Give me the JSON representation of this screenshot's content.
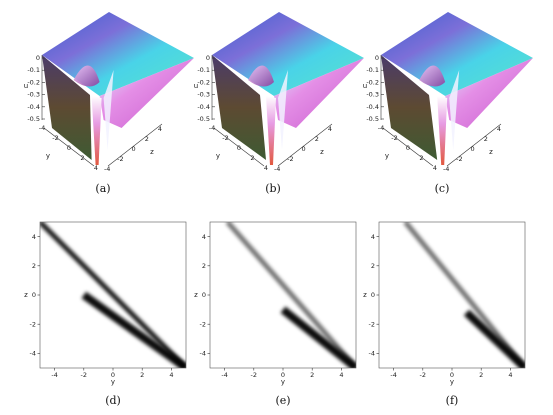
{
  "chart_data": [
    {
      "type": "surface",
      "caption": "(a)",
      "zlabel": "u",
      "xlabel": "y",
      "ylabel": "z",
      "zticks": [
        "0",
        "-0.1",
        "-0.2",
        "-0.3",
        "-0.4",
        "-0.5"
      ],
      "yticks": [
        "-4",
        "-2",
        "0",
        "2",
        "4"
      ],
      "xticks": [
        "4",
        "2",
        "0",
        "-2",
        "-4"
      ],
      "zlim": [
        -0.5,
        0
      ],
      "soliton_line_offset": -2,
      "colormap": [
        "#3fb6e6",
        "#8a66d6",
        "#e27ad8",
        "#7a2f2f",
        "#4a5a30"
      ]
    },
    {
      "type": "surface",
      "caption": "(b)",
      "zlabel": "u",
      "xlabel": "y",
      "ylabel": "z",
      "zticks": [
        "0",
        "-0.1",
        "-0.2",
        "-0.3",
        "-0.4",
        "-0.5"
      ],
      "yticks": [
        "-4",
        "-2",
        "0",
        "2",
        "4"
      ],
      "xticks": [
        "4",
        "2",
        "0",
        "-2",
        "-4"
      ],
      "zlim": [
        -0.5,
        0
      ],
      "soliton_line_offset": 0,
      "colormap": [
        "#3fb6e6",
        "#8a66d6",
        "#e27ad8",
        "#7a2f2f",
        "#4a5a30"
      ]
    },
    {
      "type": "surface",
      "caption": "(c)",
      "zlabel": "u",
      "xlabel": "y",
      "ylabel": "z",
      "zticks": [
        "0",
        "-0.1",
        "-0.2",
        "-0.3",
        "-0.4",
        "-0.5"
      ],
      "yticks": [
        "-4",
        "-2",
        "0",
        "2",
        "4"
      ],
      "xticks": [
        "4",
        "2",
        "0",
        "-2",
        "-4"
      ],
      "zlim": [
        -0.5,
        0
      ],
      "soliton_line_offset": 1,
      "colormap": [
        "#3fb6e6",
        "#8a66d6",
        "#e27ad8",
        "#7a2f2f",
        "#4a5a30"
      ]
    },
    {
      "type": "heatmap",
      "caption": "(d)",
      "xlabel": "y",
      "ylabel": "z",
      "xlim": [
        -5,
        5
      ],
      "ylim": [
        -5,
        5
      ],
      "xticks": [
        "-4",
        "-2",
        "0",
        "2",
        "4"
      ],
      "yticks": [
        "4",
        "2",
        "0",
        "-2",
        "-4"
      ],
      "line_soliton": {
        "y": -2,
        "z_from": -5,
        "z_to": 0
      },
      "diagonal_branch": {
        "from": [
          -5,
          5
        ],
        "to": [
          5,
          -5
        ]
      },
      "intersection_branch": {
        "from": [
          -2,
          0
        ],
        "to": [
          5,
          -5
        ]
      },
      "colormap": [
        "#ffffff",
        "#000000"
      ]
    },
    {
      "type": "heatmap",
      "caption": "(e)",
      "xlabel": "y",
      "ylabel": "z",
      "xlim": [
        -5,
        5
      ],
      "ylim": [
        -5,
        5
      ],
      "xticks": [
        "-4",
        "-2",
        "0",
        "2",
        "4"
      ],
      "yticks": [
        "4",
        "2",
        "0",
        "-2",
        "-4"
      ],
      "line_soliton": {
        "y": 0,
        "z_from": -5,
        "z_to": -1
      },
      "diagonal_branch": {
        "from": [
          -3.8,
          5
        ],
        "to": [
          5,
          -5
        ]
      },
      "intersection_branch": {
        "from": [
          0,
          -1
        ],
        "to": [
          5,
          -5
        ]
      },
      "colormap": [
        "#ffffff",
        "#000000"
      ]
    },
    {
      "type": "heatmap",
      "caption": "(f)",
      "xlabel": "y",
      "ylabel": "z",
      "xlim": [
        -5,
        5
      ],
      "ylim": [
        -5,
        5
      ],
      "xticks": [
        "-4",
        "-2",
        "0",
        "2",
        "4"
      ],
      "yticks": [
        "4",
        "2",
        "0",
        "-2",
        "-4"
      ],
      "line_soliton": {
        "y": 1,
        "z_from": -5,
        "z_to": -1.2
      },
      "diagonal_branch": {
        "from": [
          -3.2,
          5
        ],
        "to": [
          5,
          -5
        ]
      },
      "intersection_branch": {
        "from": [
          1,
          -1.2
        ],
        "to": [
          5,
          -5
        ]
      },
      "colormap": [
        "#ffffff",
        "#000000"
      ]
    }
  ]
}
